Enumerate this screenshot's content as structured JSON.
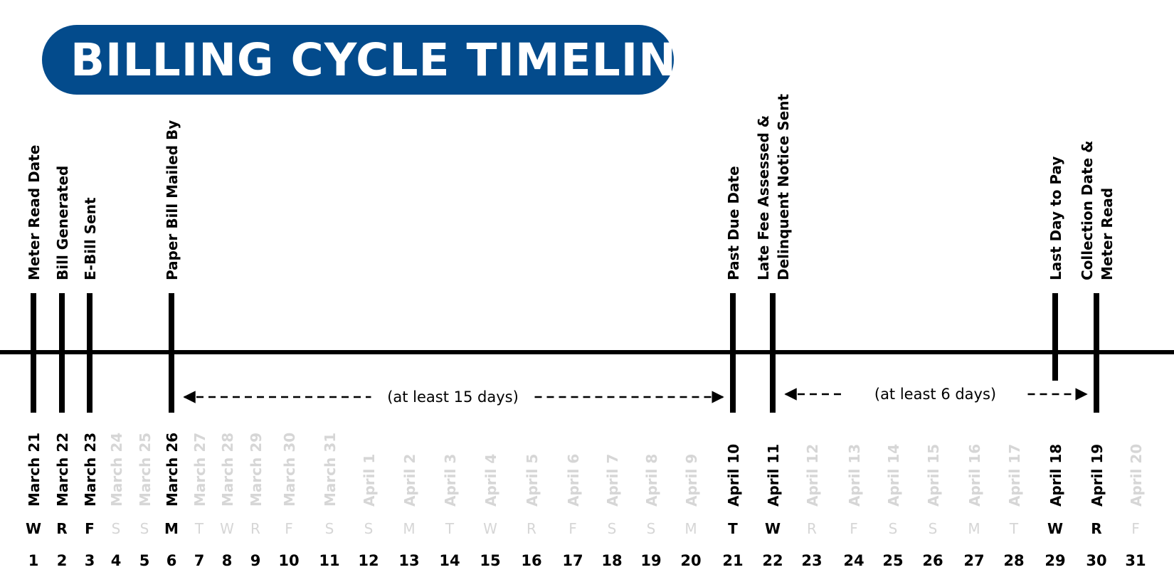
{
  "title": "BILLING CYCLE TIMELINE",
  "colors": {
    "brand": "#034b8c",
    "active": "#000000",
    "inactive": "#d6d6d6",
    "line": "#000000"
  },
  "days": [
    {
      "n": "1",
      "date": "March 21",
      "dow": "W",
      "active": true
    },
    {
      "n": "2",
      "date": "March 22",
      "dow": "R",
      "active": true
    },
    {
      "n": "3",
      "date": "March 23",
      "dow": "F",
      "active": true
    },
    {
      "n": "4",
      "date": "March 24",
      "dow": "S",
      "active": false
    },
    {
      "n": "5",
      "date": "March 25",
      "dow": "S",
      "active": false
    },
    {
      "n": "6",
      "date": "March 26",
      "dow": "M",
      "active": true
    },
    {
      "n": "7",
      "date": "March 27",
      "dow": "T",
      "active": false
    },
    {
      "n": "8",
      "date": "March 28",
      "dow": "W",
      "active": false
    },
    {
      "n": "9",
      "date": "March 29",
      "dow": "R",
      "active": false
    },
    {
      "n": "10",
      "date": "March 30",
      "dow": "F",
      "active": false
    },
    {
      "n": "11",
      "date": "March 31",
      "dow": "S",
      "active": false
    },
    {
      "n": "12",
      "date": "April 1",
      "dow": "S",
      "active": false
    },
    {
      "n": "13",
      "date": "April 2",
      "dow": "M",
      "active": false
    },
    {
      "n": "14",
      "date": "April 3",
      "dow": "T",
      "active": false
    },
    {
      "n": "15",
      "date": "April 4",
      "dow": "W",
      "active": false
    },
    {
      "n": "16",
      "date": "April 5",
      "dow": "R",
      "active": false
    },
    {
      "n": "17",
      "date": "April 6",
      "dow": "F",
      "active": false
    },
    {
      "n": "18",
      "date": "April 7",
      "dow": "S",
      "active": false
    },
    {
      "n": "19",
      "date": "April 8",
      "dow": "S",
      "active": false
    },
    {
      "n": "20",
      "date": "April 9",
      "dow": "M",
      "active": false
    },
    {
      "n": "21",
      "date": "April 10",
      "dow": "T",
      "active": true
    },
    {
      "n": "22",
      "date": "April 11",
      "dow": "W",
      "active": true
    },
    {
      "n": "23",
      "date": "April 12",
      "dow": "R",
      "active": false
    },
    {
      "n": "24",
      "date": "April 13",
      "dow": "F",
      "active": false
    },
    {
      "n": "25",
      "date": "April 14",
      "dow": "S",
      "active": false
    },
    {
      "n": "26",
      "date": "April 15",
      "dow": "S",
      "active": false
    },
    {
      "n": "27",
      "date": "April 16",
      "dow": "M",
      "active": false
    },
    {
      "n": "28",
      "date": "April 17",
      "dow": "T",
      "active": false
    },
    {
      "n": "29",
      "date": "April 18",
      "dow": "W",
      "active": true
    },
    {
      "n": "30",
      "date": "April 19",
      "dow": "R",
      "active": true
    },
    {
      "n": "31",
      "date": "April 20",
      "dow": "F",
      "active": false
    }
  ],
  "events": [
    {
      "day": "1",
      "lines": [
        "Meter Read Date"
      ],
      "marker": "full"
    },
    {
      "day": "2",
      "lines": [
        "Bill Generated"
      ],
      "marker": "full"
    },
    {
      "day": "3",
      "lines": [
        "E-Bill Sent"
      ],
      "marker": "full"
    },
    {
      "day": "6",
      "lines": [
        "Paper Bill Mailed By"
      ],
      "marker": "full"
    },
    {
      "day": "21",
      "lines": [
        "Past Due Date"
      ],
      "marker": "full"
    },
    {
      "day": "22",
      "lines": [
        "Late Fee Assessed &",
        "Delinquent Notice Sent"
      ],
      "marker": "full"
    },
    {
      "day": "29",
      "lines": [
        "Last Day to Pay"
      ],
      "marker": "short"
    },
    {
      "day": "30",
      "lines": [
        "Collection Date &",
        "Meter Read"
      ],
      "marker": "full"
    }
  ],
  "spans": [
    {
      "from": "6",
      "to": "21",
      "label": "(at least 15 days)"
    },
    {
      "from": "22",
      "to": "30",
      "label": "(at least 6 days)"
    }
  ]
}
